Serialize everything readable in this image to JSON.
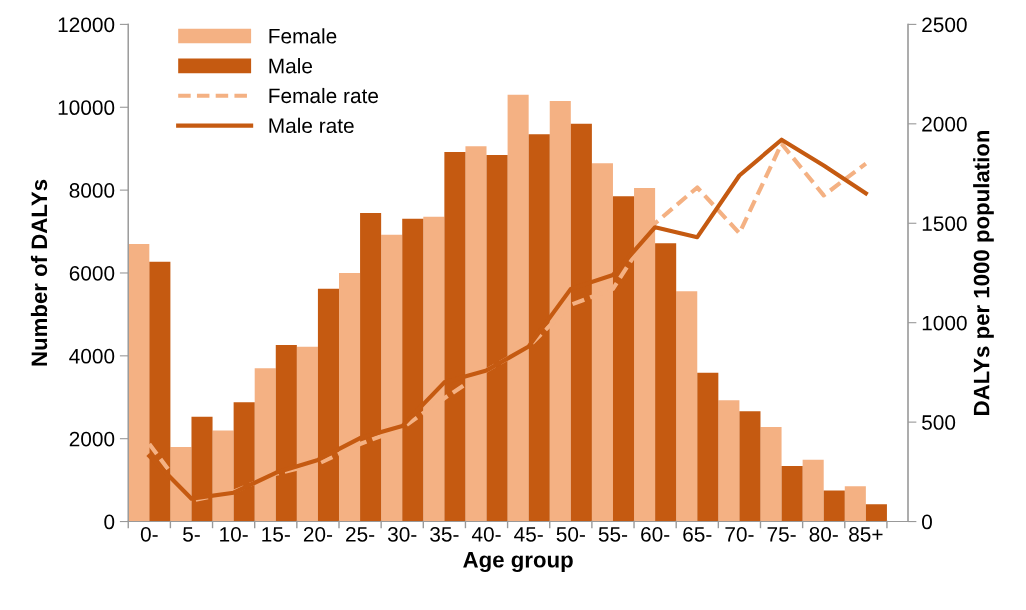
{
  "chart_data": {
    "type": "bar",
    "xlabel": "Age group",
    "ylabel": "Number of DALYs",
    "y2label": "DALYs per 1000 population",
    "categories": [
      "0-",
      "5-",
      "10-",
      "15-",
      "20-",
      "25-",
      "30-",
      "35-",
      "40-",
      "45-",
      "50-",
      "55-",
      "60-",
      "65-",
      "70-",
      "75-",
      "80-",
      "85+"
    ],
    "series": [
      {
        "name": "Female",
        "color": "#f4b183",
        "values": [
          6700,
          1800,
          2200,
          3700,
          4220,
          6000,
          6920,
          7360,
          9060,
          10300,
          10150,
          8650,
          8050,
          5560,
          2930,
          2280,
          1490,
          850
        ]
      },
      {
        "name": "Male",
        "color": "#c55a11",
        "values": [
          6270,
          2530,
          2880,
          4260,
          5620,
          7450,
          7310,
          8920,
          8850,
          9350,
          9600,
          7850,
          6720,
          3590,
          2660,
          1340,
          750,
          420
        ]
      },
      {
        "name": "Female rate",
        "type": "line",
        "axis": "y2",
        "line_style": "dashed",
        "color": "#f4b183",
        "values": [
          390,
          105,
          150,
          240,
          290,
          390,
          470,
          620,
          760,
          880,
          1090,
          1170,
          1500,
          1680,
          1450,
          1900,
          1640,
          1800
        ]
      },
      {
        "name": "Male rate",
        "type": "line",
        "axis": "y2",
        "line_style": "solid",
        "color": "#c55a11",
        "values": [
          330,
          115,
          145,
          245,
          310,
          420,
          480,
          700,
          760,
          880,
          1170,
          1240,
          1480,
          1430,
          1740,
          1920,
          1790,
          1650
        ]
      }
    ],
    "ylim": [
      0,
      12000
    ],
    "yticks": [
      0,
      2000,
      4000,
      6000,
      8000,
      10000,
      12000
    ],
    "y2lim": [
      0,
      2500
    ],
    "y2ticks": [
      0,
      500,
      1000,
      1500,
      2000,
      2500
    ],
    "grid": false,
    "legend": "top left",
    "marker": "none"
  }
}
